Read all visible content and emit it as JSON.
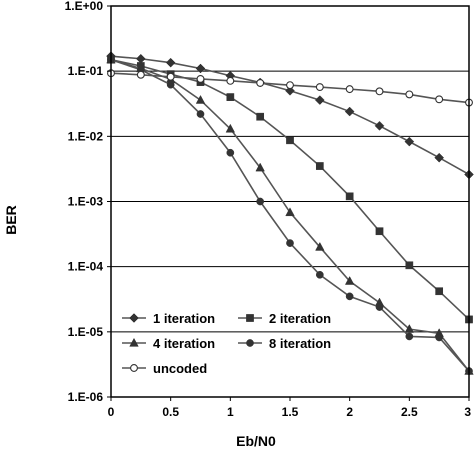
{
  "chart_data": {
    "type": "line",
    "title": "",
    "xlabel": "Eb/N0",
    "ylabel": "BER",
    "xlim": [
      0,
      3
    ],
    "ylim": [
      1e-06,
      1
    ],
    "yscale": "log",
    "grid": "horizontal",
    "legend_position": "bottom-left",
    "x_ticks": [
      "0",
      "0.5",
      "1",
      "1.5",
      "2",
      "2.5",
      "3"
    ],
    "y_ticks": [
      "1.E+00",
      "1.E-01",
      "1.E-02",
      "1.E-03",
      "1.E-04",
      "1.E-05",
      "1.E-06"
    ],
    "x": [
      0,
      0.25,
      0.5,
      0.75,
      1,
      1.25,
      1.5,
      1.75,
      2,
      2.25,
      2.5,
      2.75,
      3
    ],
    "series": [
      {
        "name": "1 iteration",
        "marker": "diamond",
        "values": [
          0.17,
          0.155,
          0.135,
          0.11,
          0.085,
          0.067,
          0.05,
          0.036,
          0.024,
          0.0145,
          0.0083,
          0.0047,
          0.0026
        ]
      },
      {
        "name": "2 iteration",
        "marker": "square",
        "values": [
          0.15,
          0.12,
          0.09,
          0.068,
          0.04,
          0.02,
          0.0087,
          0.0035,
          0.0012,
          0.00035,
          0.000105,
          4.2e-05,
          1.55e-05
        ]
      },
      {
        "name": "4 iteration",
        "marker": "triangle",
        "values": [
          0.15,
          0.11,
          0.075,
          0.036,
          0.013,
          0.0033,
          0.00068,
          0.0002,
          6e-05,
          2.8e-05,
          1.1e-05,
          9.5e-06,
          2.5e-06
        ]
      },
      {
        "name": "8 iteration",
        "marker": "circle",
        "values": [
          0.15,
          0.105,
          0.062,
          0.022,
          0.0056,
          0.001,
          0.00023,
          7.5e-05,
          3.5e-05,
          2.4e-05,
          8.5e-06,
          8.2e-06,
          2.5e-06
        ]
      },
      {
        "name": "uncoded",
        "marker": "open-circle",
        "values": [
          0.093,
          0.088,
          0.082,
          0.076,
          0.071,
          0.066,
          0.061,
          0.057,
          0.053,
          0.049,
          0.044,
          0.037,
          0.033
        ]
      }
    ]
  }
}
